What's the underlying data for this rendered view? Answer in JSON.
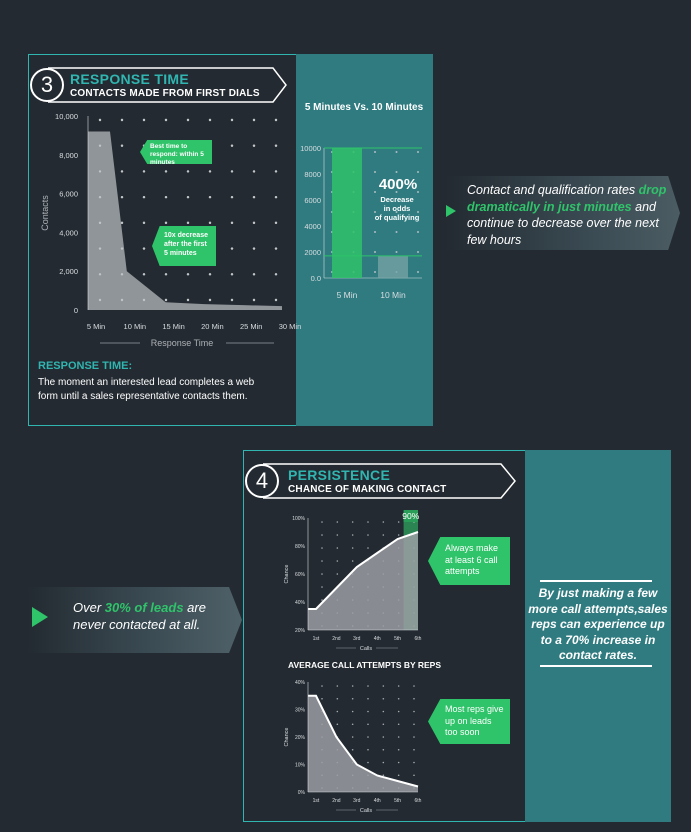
{
  "section3": {
    "number": "3",
    "title": "RESPONSE TIME",
    "subtitle": "CONTACTS MADE FROM FIRST DIALS",
    "definition_heading": "RESPONSE TIME:",
    "definition_text": "The moment an interested lead completes a web form until a sales representative contacts them.",
    "callouts": [
      "Best time to respond: within 5 minutes",
      "10x decrease after the first 5 minutes"
    ],
    "side_text_pre": "Contact and qualification rates ",
    "side_text_highlight": "drop dramatically in just minutes",
    "side_text_post": " and continue to  decrease over the next few hours"
  },
  "section4": {
    "number": "4",
    "title": "PERSISTENCE",
    "subtitle": "CHANCE OF MAKING CONTACT",
    "avg_title": "AVERAGE CALL ATTEMPTS BY REPS",
    "callout_top": "Always make at least 6 call attempts",
    "callout_bottom": "Most reps give up on leads too soon",
    "left_text_pre": "Over ",
    "left_text_highlight": "30% of leads",
    "left_text_post": " are never contacted at all.",
    "right_text": "By just making a few more call attempts,sales reps can experience up to a 70% increase in contact rates."
  },
  "colors": {
    "background": "#232a31",
    "teal": "#31b5b0",
    "teal_panel": "#2f7b80",
    "green": "#2fc36a",
    "grey_area": "#9a9ea3"
  },
  "chart_data": [
    {
      "type": "area",
      "title": "",
      "xlabel": "Response Time",
      "ylabel": "Contacts",
      "categories": [
        "5 Min",
        "10 Min",
        "15 Min",
        "20 Min",
        "25 Min",
        "30 Min"
      ],
      "y_ticks": [
        "10,000",
        "8,000",
        "6,000",
        "4,000",
        "2,000",
        "0"
      ],
      "ylim": [
        0,
        10000
      ],
      "values": [
        9200,
        2000,
        400,
        300,
        250,
        200
      ]
    },
    {
      "type": "bar",
      "title": "5 Minutes Vs. 10 Minutes",
      "categories": [
        "5 Min",
        "10 Min"
      ],
      "y_ticks": [
        "10000",
        "8000",
        "6000",
        "4000",
        "2000",
        "0.0"
      ],
      "ylim": [
        0,
        10000
      ],
      "values": [
        10000,
        1700
      ],
      "annotation_value": "400%",
      "annotation_text": "Decrease in odds of qualifying"
    },
    {
      "type": "area",
      "title": "",
      "xlabel": "Calls",
      "ylabel": "Chance",
      "categories": [
        "1st",
        "2nd",
        "3rd",
        "4th",
        "5th",
        "6th"
      ],
      "y_ticks": [
        "100%",
        "80%",
        "60%",
        "40%",
        "20%"
      ],
      "ylim": [
        20,
        100
      ],
      "values": [
        35,
        50,
        65,
        75,
        85,
        90
      ],
      "highlight_label": "90%"
    },
    {
      "type": "area",
      "title": "AVERAGE CALL ATTEMPTS BY REPS",
      "xlabel": "Calls",
      "ylabel": "Chance",
      "categories": [
        "1st",
        "2nd",
        "3rd",
        "4th",
        "5th",
        "6th"
      ],
      "y_ticks": [
        "40%",
        "30%",
        "20%",
        "10%",
        "0%"
      ],
      "ylim": [
        0,
        40
      ],
      "values": [
        35,
        20,
        10,
        6,
        4,
        2
      ]
    }
  ]
}
